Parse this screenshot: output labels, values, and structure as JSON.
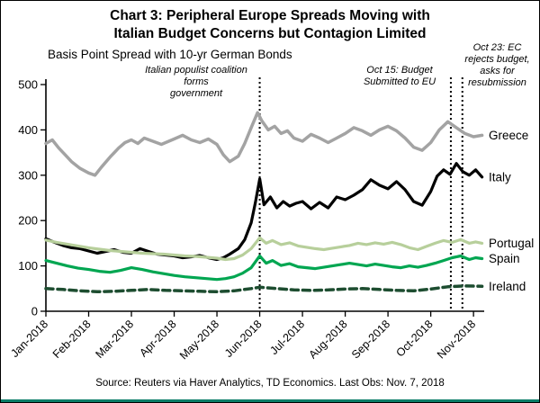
{
  "title": {
    "line1": "Chart 3: Peripheral Europe Spreads Moving with",
    "line2": "Italian Budget Concerns but Contagion Limited"
  },
  "subtitle": "Basis Point Spread with 10-yr German Bonds",
  "source": "Source: Reuters via Haver Analytics, TD Economics. Last Obs: Nov. 7, 2018",
  "colors": {
    "accent_bar": "#0b7d68",
    "axis": "#000000"
  },
  "chart_data": {
    "type": "line",
    "title": "Chart 3: Peripheral Europe Spreads Moving with Italian Budget Concerns but Contagion Limited",
    "subtitle": "Basis Point Spread with 10-yr German Bonds",
    "xlabel": "",
    "ylabel": "Basis point spread vs 10-yr German Bonds",
    "ylim": [
      0,
      500
    ],
    "yticks": [
      0,
      100,
      200,
      300,
      400,
      500
    ],
    "x_max": 10.25,
    "grid": false,
    "legend_position": "right-edge-labels",
    "x_ticks": [
      {
        "x": 0,
        "label": "Jan-2018"
      },
      {
        "x": 1,
        "label": "Feb-2018"
      },
      {
        "x": 2,
        "label": "Mar-2018"
      },
      {
        "x": 3,
        "label": "Apr-2018"
      },
      {
        "x": 4,
        "label": "May-2018"
      },
      {
        "x": 5,
        "label": "Jun-2018"
      },
      {
        "x": 6,
        "label": "Jul-2018"
      },
      {
        "x": 7,
        "label": "Aug-2018"
      },
      {
        "x": 8,
        "label": "Sep-2018"
      },
      {
        "x": 9,
        "label": "Oct-2018"
      },
      {
        "x": 10,
        "label": "Nov-2018"
      }
    ],
    "events": [
      {
        "id": "populist-coalition",
        "x": 5.0,
        "label": "Italian populist coalition\nforms\ngovernment"
      },
      {
        "id": "budget-submitted",
        "x": 9.47,
        "label": "Oct 15: Budget\nSubmitted to EU"
      },
      {
        "id": "budget-rejected",
        "x": 9.74,
        "label": "Oct 23: EC\nrejects budget,\nasks for\nresubmission"
      }
    ],
    "series": [
      {
        "name": "Greece",
        "color": "#a3a3a3",
        "width": 3.5,
        "dash": null,
        "x": [
          0,
          0.15,
          0.3,
          0.45,
          0.6,
          0.8,
          1.0,
          1.15,
          1.3,
          1.5,
          1.7,
          1.85,
          2.0,
          2.15,
          2.3,
          2.5,
          2.7,
          2.85,
          3.0,
          3.2,
          3.4,
          3.6,
          3.8,
          4.0,
          4.15,
          4.3,
          4.5,
          4.65,
          4.8,
          4.95,
          5.05,
          5.2,
          5.35,
          5.5,
          5.65,
          5.8,
          6.0,
          6.2,
          6.4,
          6.6,
          6.8,
          7.0,
          7.2,
          7.4,
          7.6,
          7.8,
          8.0,
          8.2,
          8.4,
          8.6,
          8.8,
          9.0,
          9.2,
          9.4,
          9.6,
          9.8,
          10.0,
          10.2
        ],
        "y": [
          370,
          378,
          360,
          345,
          330,
          315,
          305,
          300,
          318,
          340,
          360,
          372,
          378,
          370,
          382,
          375,
          368,
          374,
          380,
          388,
          378,
          372,
          380,
          368,
          345,
          330,
          342,
          370,
          405,
          438,
          420,
          400,
          408,
          392,
          398,
          382,
          375,
          390,
          382,
          372,
          382,
          392,
          405,
          398,
          388,
          400,
          408,
          398,
          382,
          362,
          355,
          372,
          400,
          418,
          405,
          392,
          385,
          388
        ]
      },
      {
        "name": "Italy",
        "color": "#000000",
        "width": 3.2,
        "dash": null,
        "x": [
          0,
          0.2,
          0.4,
          0.6,
          0.8,
          1.0,
          1.2,
          1.4,
          1.6,
          1.8,
          2.0,
          2.2,
          2.4,
          2.6,
          2.8,
          3.0,
          3.2,
          3.4,
          3.6,
          3.8,
          4.0,
          4.15,
          4.3,
          4.5,
          4.65,
          4.8,
          4.9,
          5.0,
          5.1,
          5.25,
          5.4,
          5.55,
          5.7,
          5.85,
          6.0,
          6.2,
          6.4,
          6.6,
          6.8,
          7.0,
          7.2,
          7.4,
          7.6,
          7.8,
          8.0,
          8.2,
          8.4,
          8.6,
          8.8,
          9.0,
          9.15,
          9.3,
          9.45,
          9.6,
          9.75,
          9.9,
          10.05,
          10.2
        ],
        "y": [
          160,
          152,
          145,
          140,
          138,
          133,
          128,
          132,
          136,
          130,
          128,
          138,
          132,
          126,
          124,
          122,
          118,
          120,
          123,
          118,
          114,
          118,
          126,
          138,
          158,
          195,
          240,
          292,
          235,
          252,
          228,
          242,
          232,
          238,
          242,
          226,
          240,
          228,
          252,
          246,
          256,
          268,
          290,
          278,
          270,
          286,
          268,
          242,
          234,
          264,
          298,
          312,
          302,
          326,
          308,
          300,
          312,
          296
        ]
      },
      {
        "name": "Portugal",
        "color": "#b7cf9b",
        "width": 3.2,
        "dash": null,
        "x": [
          0,
          0.25,
          0.5,
          0.75,
          1.0,
          1.25,
          1.5,
          1.75,
          2.0,
          2.25,
          2.5,
          2.75,
          3.0,
          3.25,
          3.5,
          3.75,
          4.0,
          4.2,
          4.4,
          4.6,
          4.8,
          5.0,
          5.15,
          5.3,
          5.5,
          5.7,
          5.9,
          6.1,
          6.3,
          6.5,
          6.7,
          6.9,
          7.1,
          7.3,
          7.5,
          7.7,
          7.9,
          8.1,
          8.3,
          8.5,
          8.7,
          8.9,
          9.1,
          9.3,
          9.5,
          9.7,
          9.9,
          10.05,
          10.2
        ],
        "y": [
          157,
          152,
          148,
          144,
          140,
          137,
          134,
          132,
          130,
          128,
          127,
          126,
          124,
          122,
          121,
          119,
          117,
          114,
          116,
          124,
          138,
          162,
          150,
          156,
          147,
          151,
          144,
          141,
          138,
          136,
          139,
          142,
          145,
          150,
          147,
          151,
          148,
          152,
          147,
          140,
          136,
          143,
          150,
          156,
          152,
          158,
          150,
          153,
          150
        ]
      },
      {
        "name": "Spain",
        "color": "#00a651",
        "width": 3.2,
        "dash": null,
        "x": [
          0,
          0.25,
          0.5,
          0.75,
          1.0,
          1.25,
          1.5,
          1.75,
          2.0,
          2.25,
          2.5,
          2.75,
          3.0,
          3.25,
          3.5,
          3.75,
          4.0,
          4.2,
          4.4,
          4.6,
          4.8,
          5.0,
          5.15,
          5.3,
          5.5,
          5.7,
          5.9,
          6.1,
          6.3,
          6.5,
          6.7,
          6.9,
          7.1,
          7.3,
          7.5,
          7.7,
          7.9,
          8.1,
          8.3,
          8.5,
          8.7,
          8.9,
          9.1,
          9.3,
          9.5,
          9.7,
          9.9,
          10.05,
          10.2
        ],
        "y": [
          112,
          106,
          100,
          95,
          92,
          88,
          86,
          90,
          96,
          92,
          87,
          83,
          79,
          76,
          74,
          72,
          70,
          72,
          76,
          84,
          96,
          122,
          106,
          112,
          101,
          105,
          98,
          96,
          94,
          97,
          100,
          103,
          106,
          103,
          100,
          104,
          101,
          98,
          96,
          100,
          97,
          101,
          106,
          112,
          118,
          122,
          114,
          118,
          116
        ]
      },
      {
        "name": "Ireland",
        "color": "#1d4d30",
        "width": 3.5,
        "dash": "8 5",
        "x": [
          0,
          0.4,
          0.8,
          1.2,
          1.6,
          2.0,
          2.4,
          2.8,
          3.2,
          3.6,
          4.0,
          4.4,
          4.8,
          5.0,
          5.4,
          5.8,
          6.2,
          6.6,
          7.0,
          7.4,
          7.8,
          8.2,
          8.6,
          9.0,
          9.4,
          9.8,
          10.2
        ],
        "y": [
          50,
          48,
          45,
          43,
          44,
          46,
          48,
          46,
          45,
          44,
          43,
          45,
          50,
          53,
          50,
          47,
          46,
          47,
          49,
          50,
          48,
          46,
          45,
          49,
          54,
          56,
          55
        ]
      }
    ]
  }
}
